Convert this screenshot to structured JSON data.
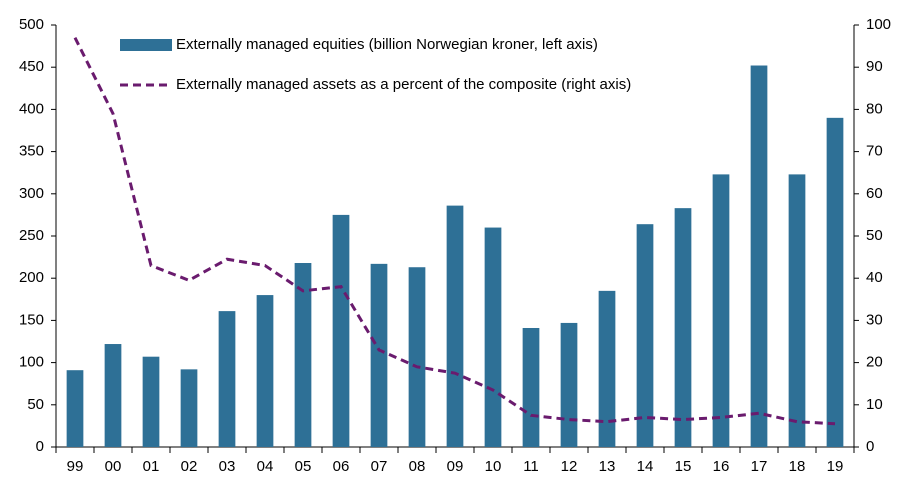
{
  "chart_data": {
    "type": "bar",
    "categories": [
      "99",
      "00",
      "01",
      "02",
      "03",
      "04",
      "05",
      "06",
      "07",
      "08",
      "09",
      "10",
      "11",
      "12",
      "13",
      "14",
      "15",
      "16",
      "17",
      "18",
      "19"
    ],
    "series": [
      {
        "name": "Externally managed equities (billion Norwegian kroner, left axis)",
        "type": "bar",
        "color": "#2e7096",
        "values": [
          91,
          122,
          107,
          92,
          161,
          180,
          218,
          275,
          217,
          213,
          286,
          260,
          141,
          147,
          185,
          264,
          283,
          323,
          452,
          323,
          390
        ]
      },
      {
        "name": "Externally managed assets as a percent of the composite (right axis)",
        "type": "line",
        "axis": "y2",
        "dashed": true,
        "color": "#6a1b6e",
        "values": [
          97,
          79,
          43,
          39.5,
          44.5,
          43,
          37,
          38,
          23,
          19,
          17.5,
          13.5,
          7.5,
          6.5,
          6,
          7,
          6.5,
          7,
          8,
          6,
          5.5
        ]
      }
    ],
    "ylim": [
      0,
      500
    ],
    "yticks": [
      0,
      50,
      100,
      150,
      200,
      250,
      300,
      350,
      400,
      450,
      500
    ],
    "y2lim": [
      0,
      100
    ],
    "y2ticks": [
      0,
      10,
      20,
      30,
      40,
      50,
      60,
      70,
      80,
      90,
      100
    ],
    "grid": false,
    "legend": "top"
  }
}
